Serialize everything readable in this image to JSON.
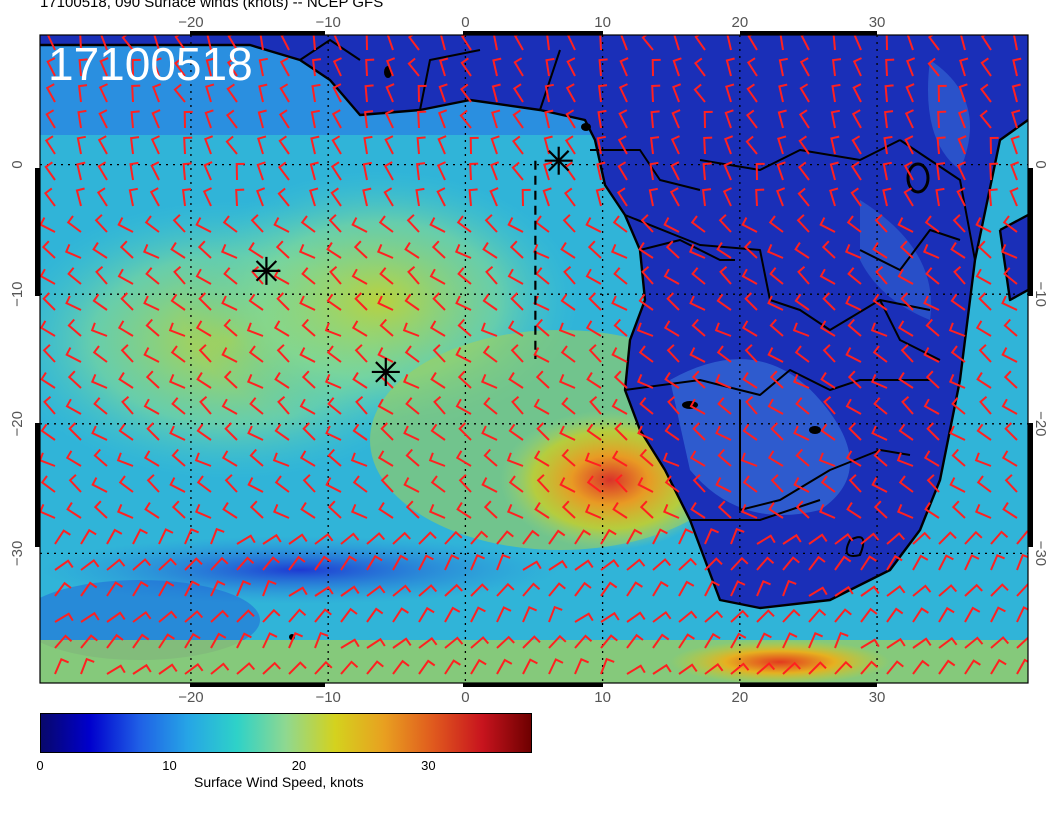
{
  "title": "17100518, 090 Surface winds (knots) -- NCEP GFS",
  "overlay_label": "17100518",
  "map": {
    "lon_range": [
      -31,
      41
    ],
    "lat_range": [
      -40,
      10
    ],
    "lon_ticks": [
      -20,
      -10,
      0,
      10,
      20,
      30
    ],
    "lat_ticks": [
      0,
      -10,
      -20,
      -30
    ],
    "lon_tick_labels_bottom": [
      "−20",
      "−10",
      "0",
      "10",
      "20",
      "30"
    ],
    "lon_tick_labels_top": [
      "−20",
      "−10",
      "0",
      "10",
      "20",
      "30"
    ],
    "lat_tick_labels": [
      "0",
      "−10",
      "−20",
      "−30"
    ],
    "markers": [
      {
        "name": "storm-marker-1",
        "lon": 6.8,
        "lat": 0.3
      },
      {
        "name": "storm-marker-2",
        "lon": -14.5,
        "lat": -8.2
      },
      {
        "name": "storm-marker-3",
        "lon": -5.8,
        "lat": -16.0
      }
    ],
    "track_line": {
      "lon": 5.1,
      "lat_start": 0.3,
      "lat_end": -15.0
    },
    "barb_color": "#ff2020"
  },
  "colorbar": {
    "label": "Surface Wind Speed, knots",
    "tick_labels": [
      "0",
      "10",
      "20",
      "30"
    ],
    "range": [
      0,
      38
    ],
    "colors": [
      "#08086b",
      "#0000cd",
      "#1f5fe6",
      "#26a5e6",
      "#2ed2c8",
      "#8fd890",
      "#d4d21e",
      "#e8a020",
      "#e05a1e",
      "#c8141e",
      "#6e0000"
    ]
  }
}
